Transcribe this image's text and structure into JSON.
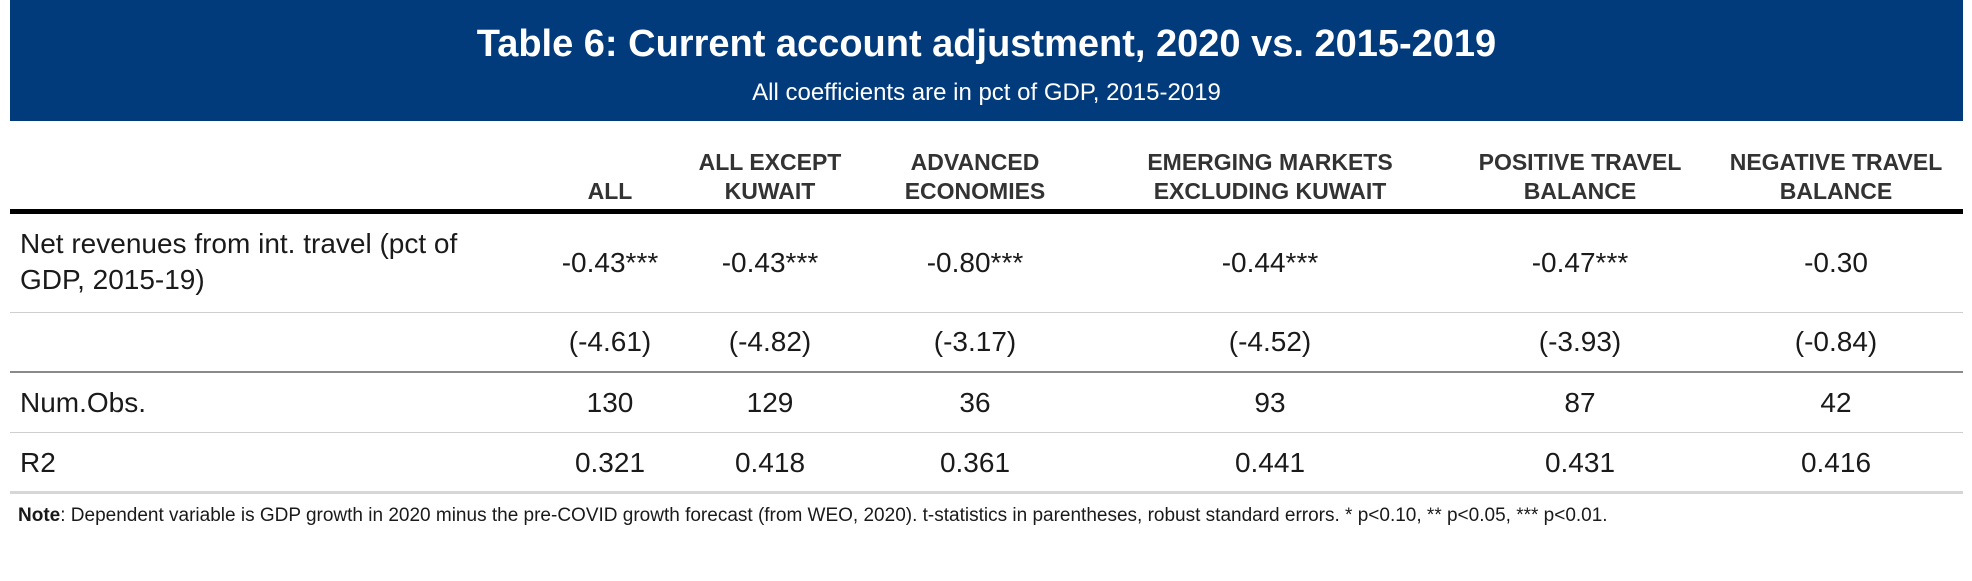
{
  "table": {
    "title": "Table 6: Current account adjustment, 2020 vs. 2015-2019",
    "subtitle": "All coefficients are in pct of GDP, 2015-2019",
    "columns": [
      {
        "line1": "",
        "line2": "ALL"
      },
      {
        "line1": "ALL EXCEPT",
        "line2": "KUWAIT"
      },
      {
        "line1": "ADVANCED",
        "line2": "ECONOMIES"
      },
      {
        "line1": "EMERGING MARKETS",
        "line2": "EXCLUDING KUWAIT"
      },
      {
        "line1": "POSITIVE TRAVEL",
        "line2": "BALANCE"
      },
      {
        "line1": "NEGATIVE TRAVEL",
        "line2": "BALANCE"
      }
    ],
    "rows": [
      {
        "label_line1": "Net revenues from int. travel (pct of",
        "label_line2": "GDP, 2015-19)",
        "values": [
          "-0.43***",
          "-0.43***",
          "-0.80***",
          "-0.44***",
          "-0.47***",
          "-0.30"
        ]
      },
      {
        "label_line1": "",
        "label_line2": "",
        "values": [
          "(-4.61)",
          "(-4.82)",
          "(-3.17)",
          "(-4.52)",
          "(-3.93)",
          "(-0.84)"
        ]
      },
      {
        "label_line1": "Num.Obs.",
        "label_line2": "",
        "values": [
          "130",
          "129",
          "36",
          "93",
          "87",
          "42"
        ]
      },
      {
        "label_line1": "R2",
        "label_line2": "",
        "values": [
          "0.321",
          "0.418",
          "0.361",
          "0.441",
          "0.431",
          "0.416"
        ]
      }
    ],
    "note": {
      "label": "Note",
      "text": ": Dependent variable is GDP growth in 2020 minus the pre-COVID growth forecast (from WEO, 2020). t-statistics in parentheses, robust standard errors. * p<0.10, ** p<0.05, *** p<0.01."
    }
  }
}
